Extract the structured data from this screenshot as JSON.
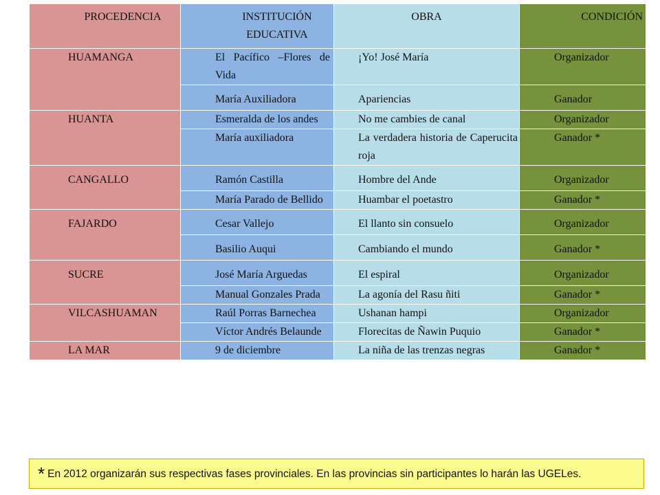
{
  "table": {
    "headers": {
      "procedencia": "PROCEDENCIA",
      "institucion": "INSTITUCIÓN EDUCATIVA",
      "obra": "OBRA",
      "condicion": "CONDICIÓN"
    },
    "groups": [
      {
        "procedencia": "HUAMANGA",
        "rows": [
          {
            "institucion": "El Pacífico –Flores de Vida",
            "obra": "¡Yo! José María",
            "condicion": "Organizador"
          },
          {
            "institucion": "María Auxiliadora",
            "obra": "Apariencias",
            "condicion": "Ganador"
          }
        ]
      },
      {
        "procedencia": "HUANTA",
        "rows": [
          {
            "institucion": "Esmeralda de los andes",
            "obra": "No me cambies de canal",
            "condicion": "Organizador"
          },
          {
            "institucion": "María auxiliadora",
            "obra": "La verdadera historia de Caperucita roja",
            "condicion": "Ganador *"
          }
        ]
      },
      {
        "procedencia": "CANGALLO",
        "rows": [
          {
            "institucion": "Ramón Castilla",
            "obra": "Hombre del Ande",
            "condicion": "Organizador"
          },
          {
            "institucion": "María Parado de Bellido",
            "obra": "Huambar el poetastro",
            "condicion": "Ganador *"
          }
        ]
      },
      {
        "procedencia": "FAJARDO",
        "rows": [
          {
            "institucion": "Cesar Vallejo",
            "obra": "El llanto sin consuelo",
            "condicion": "Organizador"
          },
          {
            "institucion": "Basilio Auqui",
            "obra": "Cambiando el mundo",
            "condicion": "Ganador *"
          }
        ]
      },
      {
        "procedencia": "SUCRE",
        "rows": [
          {
            "institucion": "José María Arguedas",
            "obra": "El espiral",
            "condicion": "Organizador"
          },
          {
            "institucion": "Manual Gonzales Prada",
            "obra": "La agonía del Rasu ñiti",
            "condicion": "Ganador *"
          }
        ]
      },
      {
        "procedencia": "VILCASHUAMAN",
        "rows": [
          {
            "institucion": "Raúl Porras Barnechea",
            "obra": "Ushanan hampi",
            "condicion": "Organizador"
          },
          {
            "institucion": "Víctor Andrés Belaunde",
            "obra": "Florecitas de Ñawin Puquio",
            "condicion": "Ganador *"
          }
        ]
      },
      {
        "procedencia": "LA MAR",
        "rows": [
          {
            "institucion": "9 de diciembre",
            "obra": "La niña de las trenzas negras",
            "condicion": "Ganador *"
          }
        ]
      }
    ]
  },
  "footer": {
    "asterisk": "*",
    "note": "En 2012 organizarán sus respectivas fases provinciales.  En las provincias sin participantes lo harán las UGELes."
  },
  "colors": {
    "procedencia": "#d99594",
    "institucion": "#8db3e2",
    "obra": "#b7dde8",
    "condicion": "#76923c",
    "footer_bg": "#fcfc8e"
  }
}
